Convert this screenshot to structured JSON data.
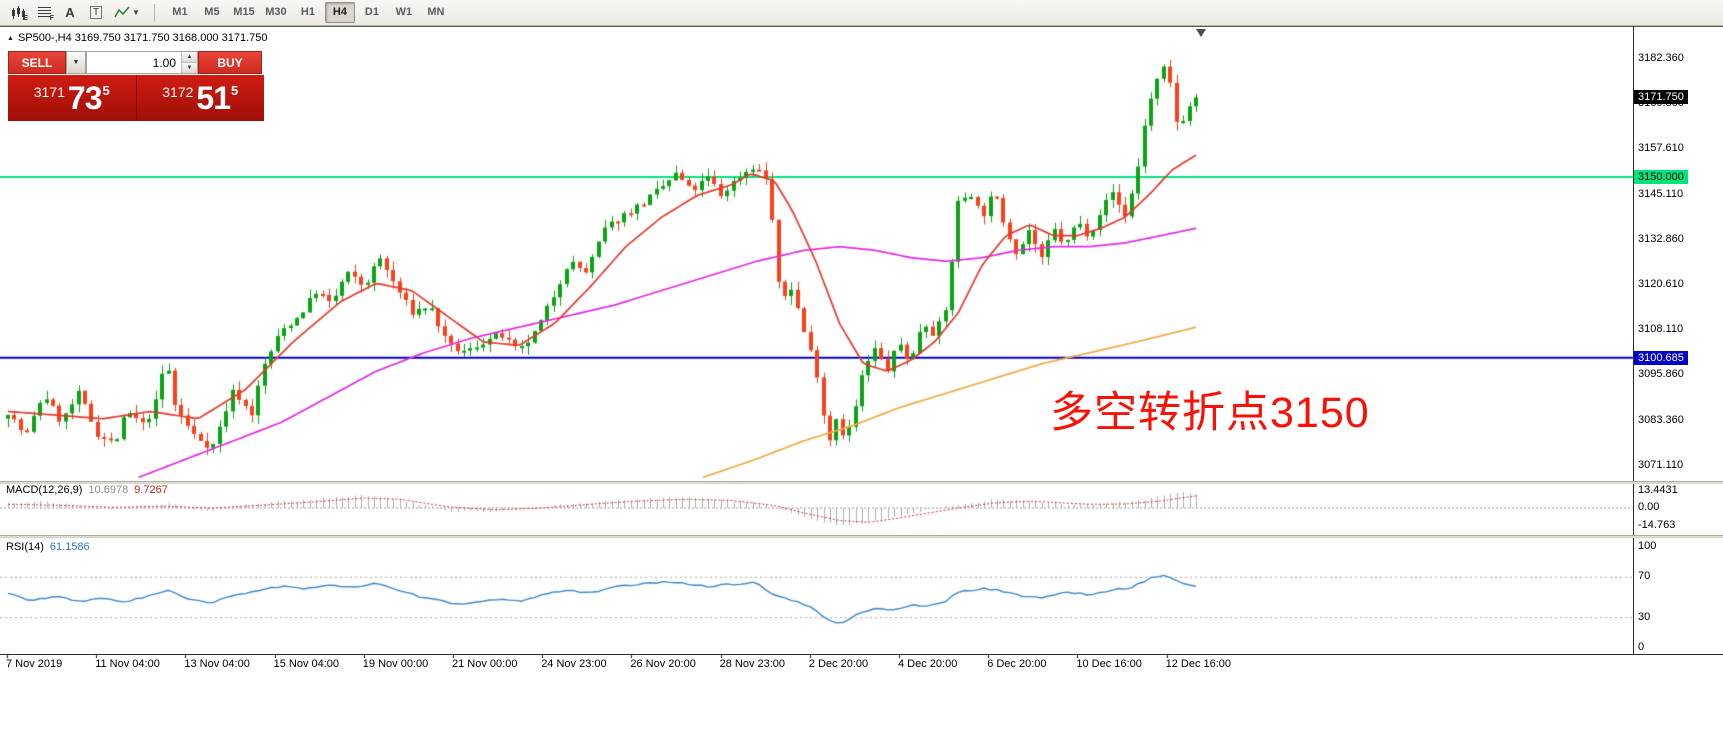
{
  "toolbar": {
    "timeframes": [
      "M1",
      "M5",
      "M15",
      "M30",
      "H1",
      "H4",
      "D1",
      "W1",
      "MN"
    ],
    "active_timeframe": "H4",
    "icon_labels": {
      "e": "E",
      "f": "F",
      "a": "A",
      "t": "T"
    }
  },
  "icons": {
    "dropdown_caret": "▼",
    "spinner_up": "▲",
    "spinner_down": "▼",
    "symbol_marker": "▲"
  },
  "chart": {
    "symbol_line": "SP500-,H4  3169.750 3171.750 3168.000 3171.750",
    "trade": {
      "sell_label": "SELL",
      "buy_label": "BUY",
      "volume": "1.00",
      "sell_big": "3171",
      "sell_pips": "73",
      "sell_sup": "5",
      "buy_big": "3172",
      "buy_pips": "51",
      "buy_sup": "5"
    },
    "annotation": {
      "text": "多空转折点3150",
      "color": "#fb1006"
    },
    "price_axis_labels": [
      "3182.360",
      "3169.860",
      "3157.610",
      "3145.110",
      "3132.860",
      "3120.610",
      "3108.110",
      "3095.860",
      "3083.360",
      "3071.110"
    ],
    "tags": {
      "current": "3171.750",
      "resistance": "3150.000",
      "support": "3100.685"
    },
    "colors": {
      "candle_up": "#0aa315",
      "candle_down": "#f9411d",
      "ma_fast": "#e8372c",
      "ma_mid": "#e428e4",
      "ma_slow": "#f0a93e",
      "level_green": "#00e57e",
      "level_blue": "#0000c8",
      "macd_hist": "#aeaeae",
      "macd_signal": "#c83232",
      "rsi_line": "#3a86c8"
    }
  },
  "macd": {
    "label": "MACD(12,26,9)",
    "value_main": "10.6978",
    "value_signal": "9.7267",
    "axis": [
      "13.4431",
      "0.00",
      "-14.763"
    ]
  },
  "rsi": {
    "label": "RSI(14)",
    "value": "61.1586",
    "axis": [
      "100",
      "70",
      "30",
      "0"
    ]
  },
  "time_axis": [
    "7 Nov 2019",
    "11 Nov 04:00",
    "13 Nov 04:00",
    "15 Nov 04:00",
    "19 Nov 00:00",
    "21 Nov 00:00",
    "24 Nov 23:00",
    "26 Nov 20:00",
    "28 Nov 23:00",
    "2 Dec 20:00",
    "4 Dec 20:00",
    "6 Dec 20:00",
    "10 Dec 16:00",
    "12 Dec 16:00"
  ],
  "chart_data": {
    "type": "candlestick",
    "symbol": "SP500-",
    "timeframe": "H4",
    "ohlc_current": {
      "open": 3169.75,
      "high": 3171.75,
      "low": 3168.0,
      "close": 3171.75
    },
    "current_price": 3171.75,
    "price_range": [
      3067,
      3191
    ],
    "levels": [
      {
        "name": "resistance",
        "price": 3150.0,
        "color": "#00e57e"
      },
      {
        "name": "support",
        "price": 3100.685,
        "color": "#0000c8"
      }
    ],
    "bars": 186,
    "close_path": [
      [
        0,
        3086
      ],
      [
        0.015,
        3079
      ],
      [
        0.03,
        3091
      ],
      [
        0.045,
        3083
      ],
      [
        0.06,
        3091
      ],
      [
        0.075,
        3080
      ],
      [
        0.09,
        3077
      ],
      [
        0.1,
        3086
      ],
      [
        0.115,
        3082
      ],
      [
        0.125,
        3089
      ],
      [
        0.133,
        3101
      ],
      [
        0.14,
        3088
      ],
      [
        0.155,
        3080
      ],
      [
        0.172,
        3076
      ],
      [
        0.19,
        3092
      ],
      [
        0.205,
        3085
      ],
      [
        0.215,
        3098
      ],
      [
        0.23,
        3108
      ],
      [
        0.245,
        3112
      ],
      [
        0.26,
        3119
      ],
      [
        0.272,
        3115
      ],
      [
        0.285,
        3124
      ],
      [
        0.3,
        3120
      ],
      [
        0.313,
        3128
      ],
      [
        0.325,
        3121
      ],
      [
        0.34,
        3113
      ],
      [
        0.355,
        3115
      ],
      [
        0.37,
        3104
      ],
      [
        0.385,
        3102
      ],
      [
        0.4,
        3105
      ],
      [
        0.415,
        3107
      ],
      [
        0.43,
        3102
      ],
      [
        0.445,
        3108
      ],
      [
        0.46,
        3118
      ],
      [
        0.472,
        3127
      ],
      [
        0.487,
        3124
      ],
      [
        0.503,
        3136
      ],
      [
        0.52,
        3140
      ],
      [
        0.535,
        3143
      ],
      [
        0.55,
        3147
      ],
      [
        0.563,
        3151
      ],
      [
        0.575,
        3146
      ],
      [
        0.59,
        3150
      ],
      [
        0.6,
        3145
      ],
      [
        0.615,
        3150
      ],
      [
        0.628,
        3153
      ],
      [
        0.64,
        3149
      ],
      [
        0.65,
        3116
      ],
      [
        0.66,
        3120
      ],
      [
        0.67,
        3108
      ],
      [
        0.68,
        3098
      ],
      [
        0.685,
        3090
      ],
      [
        0.69,
        3074
      ],
      [
        0.695,
        3086
      ],
      [
        0.703,
        3080
      ],
      [
        0.71,
        3082
      ],
      [
        0.72,
        3097
      ],
      [
        0.73,
        3103
      ],
      [
        0.74,
        3097
      ],
      [
        0.75,
        3105
      ],
      [
        0.76,
        3099
      ],
      [
        0.77,
        3111
      ],
      [
        0.78,
        3107
      ],
      [
        0.79,
        3114
      ],
      [
        0.8,
        3143
      ],
      [
        0.81,
        3146
      ],
      [
        0.82,
        3139
      ],
      [
        0.83,
        3146
      ],
      [
        0.84,
        3136
      ],
      [
        0.85,
        3129
      ],
      [
        0.86,
        3136
      ],
      [
        0.87,
        3127
      ],
      [
        0.88,
        3136
      ],
      [
        0.89,
        3131
      ],
      [
        0.9,
        3138
      ],
      [
        0.91,
        3134
      ],
      [
        0.92,
        3141
      ],
      [
        0.93,
        3146
      ],
      [
        0.94,
        3139
      ],
      [
        0.95,
        3150
      ],
      [
        0.958,
        3167
      ],
      [
        0.965,
        3174
      ],
      [
        0.972,
        3180
      ],
      [
        0.978,
        3176
      ],
      [
        0.985,
        3163
      ],
      [
        0.992,
        3168
      ],
      [
        1,
        3171.75
      ]
    ],
    "ma_fast_red": [
      [
        0,
        3086
      ],
      [
        0.04,
        3085
      ],
      [
        0.08,
        3084
      ],
      [
        0.12,
        3086
      ],
      [
        0.16,
        3084
      ],
      [
        0.2,
        3092
      ],
      [
        0.24,
        3105
      ],
      [
        0.28,
        3116
      ],
      [
        0.31,
        3121
      ],
      [
        0.34,
        3119
      ],
      [
        0.37,
        3112
      ],
      [
        0.4,
        3105
      ],
      [
        0.43,
        3104
      ],
      [
        0.46,
        3110
      ],
      [
        0.49,
        3120
      ],
      [
        0.52,
        3131
      ],
      [
        0.55,
        3139
      ],
      [
        0.58,
        3145
      ],
      [
        0.61,
        3148
      ],
      [
        0.625,
        3151
      ],
      [
        0.645,
        3149
      ],
      [
        0.66,
        3141
      ],
      [
        0.68,
        3127
      ],
      [
        0.7,
        3110
      ],
      [
        0.72,
        3099
      ],
      [
        0.74,
        3097
      ],
      [
        0.76,
        3100
      ],
      [
        0.78,
        3105
      ],
      [
        0.8,
        3113
      ],
      [
        0.82,
        3126
      ],
      [
        0.84,
        3134
      ],
      [
        0.86,
        3137
      ],
      [
        0.88,
        3134
      ],
      [
        0.9,
        3134
      ],
      [
        0.92,
        3136
      ],
      [
        0.94,
        3139
      ],
      [
        0.96,
        3145
      ],
      [
        0.98,
        3152
      ],
      [
        1,
        3156
      ]
    ],
    "ma_mid_magenta": [
      [
        0.11,
        3068
      ],
      [
        0.15,
        3073
      ],
      [
        0.19,
        3078
      ],
      [
        0.23,
        3083
      ],
      [
        0.27,
        3090
      ],
      [
        0.31,
        3097
      ],
      [
        0.35,
        3102
      ],
      [
        0.39,
        3106
      ],
      [
        0.43,
        3109
      ],
      [
        0.47,
        3112
      ],
      [
        0.51,
        3115
      ],
      [
        0.55,
        3119
      ],
      [
        0.59,
        3123
      ],
      [
        0.63,
        3127
      ],
      [
        0.67,
        3130
      ],
      [
        0.7,
        3131
      ],
      [
        0.73,
        3130
      ],
      [
        0.76,
        3128
      ],
      [
        0.79,
        3127
      ],
      [
        0.82,
        3128
      ],
      [
        0.85,
        3130
      ],
      [
        0.88,
        3131
      ],
      [
        0.91,
        3131
      ],
      [
        0.94,
        3132
      ],
      [
        0.97,
        3134
      ],
      [
        1,
        3136
      ]
    ],
    "ma_slow_orange": [
      [
        0.585,
        3068
      ],
      [
        0.63,
        3073
      ],
      [
        0.67,
        3078
      ],
      [
        0.71,
        3082
      ],
      [
        0.75,
        3087
      ],
      [
        0.79,
        3091
      ],
      [
        0.83,
        3095
      ],
      [
        0.87,
        3099
      ],
      [
        0.91,
        3102
      ],
      [
        0.95,
        3105
      ],
      [
        1,
        3109
      ]
    ],
    "macd_range": [
      -14.763,
      13.4431
    ],
    "macd_hist": [
      [
        0,
        4
      ],
      [
        0.03,
        5
      ],
      [
        0.06,
        2
      ],
      [
        0.09,
        -1
      ],
      [
        0.12,
        1.5
      ],
      [
        0.135,
        4
      ],
      [
        0.155,
        -1.5
      ],
      [
        0.175,
        -2
      ],
      [
        0.2,
        2
      ],
      [
        0.23,
        5
      ],
      [
        0.26,
        7.5
      ],
      [
        0.29,
        9.5
      ],
      [
        0.31,
        10.5
      ],
      [
        0.33,
        6
      ],
      [
        0.35,
        2
      ],
      [
        0.37,
        -2
      ],
      [
        0.4,
        -3
      ],
      [
        0.43,
        -1
      ],
      [
        0.46,
        2
      ],
      [
        0.49,
        4
      ],
      [
        0.52,
        6.5
      ],
      [
        0.55,
        8
      ],
      [
        0.58,
        8.5
      ],
      [
        0.6,
        6.5
      ],
      [
        0.62,
        5
      ],
      [
        0.64,
        2.5
      ],
      [
        0.655,
        -3
      ],
      [
        0.67,
        -7
      ],
      [
        0.69,
        -12
      ],
      [
        0.705,
        -14.2
      ],
      [
        0.72,
        -12
      ],
      [
        0.74,
        -8
      ],
      [
        0.755,
        -5
      ],
      [
        0.77,
        -2
      ],
      [
        0.79,
        1
      ],
      [
        0.81,
        4
      ],
      [
        0.83,
        7
      ],
      [
        0.85,
        6
      ],
      [
        0.87,
        4
      ],
      [
        0.89,
        3
      ],
      [
        0.905,
        2.5
      ],
      [
        0.92,
        3
      ],
      [
        0.94,
        4.5
      ],
      [
        0.955,
        6.5
      ],
      [
        0.97,
        9
      ],
      [
        0.985,
        12.5
      ],
      [
        1,
        10.7
      ]
    ],
    "macd_signal_path": [
      [
        0,
        3
      ],
      [
        0.05,
        2
      ],
      [
        0.09,
        0.5
      ],
      [
        0.13,
        1.5
      ],
      [
        0.17,
        0
      ],
      [
        0.21,
        2
      ],
      [
        0.26,
        5
      ],
      [
        0.3,
        8
      ],
      [
        0.33,
        7
      ],
      [
        0.37,
        1
      ],
      [
        0.41,
        -1.5
      ],
      [
        0.45,
        0
      ],
      [
        0.49,
        3
      ],
      [
        0.53,
        5.5
      ],
      [
        0.57,
        7
      ],
      [
        0.61,
        6
      ],
      [
        0.645,
        2
      ],
      [
        0.67,
        -4
      ],
      [
        0.7,
        -10
      ],
      [
        0.725,
        -11.5
      ],
      [
        0.75,
        -8
      ],
      [
        0.775,
        -4
      ],
      [
        0.8,
        0
      ],
      [
        0.83,
        4
      ],
      [
        0.86,
        5.5
      ],
      [
        0.88,
        4.5
      ],
      [
        0.91,
        3
      ],
      [
        0.94,
        3.2
      ],
      [
        0.97,
        5.5
      ],
      [
        1,
        9.7267
      ]
    ],
    "rsi_range": [
      0,
      100
    ],
    "rsi_levels": [
      70,
      30
    ],
    "rsi_path": [
      [
        0,
        54
      ],
      [
        0.02,
        47
      ],
      [
        0.04,
        51
      ],
      [
        0.06,
        46
      ],
      [
        0.08,
        49
      ],
      [
        0.1,
        46
      ],
      [
        0.12,
        52
      ],
      [
        0.135,
        57
      ],
      [
        0.15,
        49
      ],
      [
        0.17,
        44
      ],
      [
        0.19,
        52
      ],
      [
        0.21,
        57
      ],
      [
        0.23,
        61
      ],
      [
        0.25,
        58
      ],
      [
        0.27,
        63
      ],
      [
        0.29,
        60
      ],
      [
        0.31,
        64
      ],
      [
        0.33,
        56
      ],
      [
        0.35,
        50
      ],
      [
        0.37,
        45
      ],
      [
        0.39,
        44
      ],
      [
        0.41,
        48
      ],
      [
        0.43,
        46
      ],
      [
        0.45,
        53
      ],
      [
        0.47,
        57
      ],
      [
        0.49,
        55
      ],
      [
        0.51,
        60
      ],
      [
        0.53,
        63
      ],
      [
        0.55,
        65
      ],
      [
        0.57,
        64
      ],
      [
        0.59,
        61
      ],
      [
        0.61,
        63
      ],
      [
        0.63,
        65
      ],
      [
        0.645,
        52
      ],
      [
        0.66,
        47
      ],
      [
        0.675,
        41
      ],
      [
        0.69,
        28
      ],
      [
        0.7,
        24
      ],
      [
        0.715,
        33
      ],
      [
        0.73,
        40
      ],
      [
        0.745,
        37
      ],
      [
        0.76,
        43
      ],
      [
        0.775,
        41
      ],
      [
        0.79,
        47
      ],
      [
        0.8,
        55
      ],
      [
        0.82,
        59
      ],
      [
        0.84,
        56
      ],
      [
        0.85,
        52
      ],
      [
        0.87,
        50
      ],
      [
        0.89,
        55
      ],
      [
        0.91,
        53
      ],
      [
        0.93,
        57
      ],
      [
        0.945,
        60
      ],
      [
        0.955,
        65
      ],
      [
        0.965,
        71
      ],
      [
        0.975,
        72
      ],
      [
        0.985,
        66
      ],
      [
        0.993,
        62
      ],
      [
        1,
        61.1586
      ]
    ]
  }
}
